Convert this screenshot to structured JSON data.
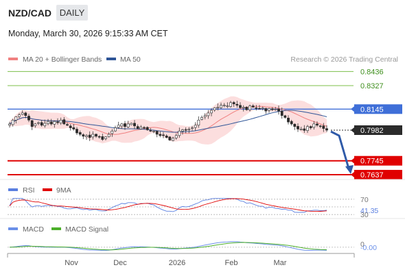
{
  "header": {
    "pair": "NZD/CAD",
    "timeframe": "DAILY",
    "datetime": "Monday, March 30, 2026 9:15:33 AM CET"
  },
  "legend_main": {
    "ma20_label": "MA 20 + Bollinger Bands",
    "ma50_label": "MA 50",
    "credit": "Research © 2026 Trading Central"
  },
  "legend_rsi": {
    "rsi_label": "RSI",
    "ma_label": "9MA"
  },
  "legend_macd": {
    "macd_label": "MACD",
    "signal_label": "MACD Signal"
  },
  "colors": {
    "resistance": "#7cbf4a",
    "support": "#e00000",
    "pivot": "#3f6fd8",
    "last": "#2b2b2b",
    "ma20": "#f08080",
    "ma50": "#2e5597",
    "bollinger_fill": "#fbd3d3",
    "macd": "#6a8fe8",
    "signal": "#4caf2a",
    "arrow": "#2f5aa8"
  },
  "chart_data": [
    {
      "type": "candlestick",
      "title": "NZD/CAD",
      "x_ticks": [
        "Nov",
        "Dec",
        "2026",
        "Feb",
        "Mar"
      ],
      "ylim": [
        0.76,
        0.847
      ],
      "levels": [
        {
          "kind": "resistance",
          "label": "0.8436",
          "value": 0.8436
        },
        {
          "kind": "resistance",
          "label": "0.8327",
          "value": 0.8327
        },
        {
          "kind": "pivot",
          "label": "0.8145",
          "value": 0.8145
        },
        {
          "kind": "last",
          "label": "0.7982",
          "value": 0.7982
        },
        {
          "kind": "support",
          "label": "0.7745",
          "value": 0.7745
        },
        {
          "kind": "support",
          "label": "0.7637",
          "value": 0.7637
        }
      ],
      "closes": [
        0.803,
        0.806,
        0.8085,
        0.81,
        0.8115,
        0.8095,
        0.806,
        0.801,
        0.803,
        0.804,
        0.802,
        0.8035,
        0.805,
        0.803,
        0.805,
        0.804,
        0.806,
        0.803,
        0.802,
        0.8,
        0.799,
        0.796,
        0.795,
        0.7935,
        0.794,
        0.7925,
        0.795,
        0.7935,
        0.793,
        0.791,
        0.793,
        0.795,
        0.7975,
        0.8,
        0.802,
        0.803,
        0.801,
        0.803,
        0.8035,
        0.8015,
        0.7995,
        0.8005,
        0.8,
        0.7985,
        0.7975,
        0.7975,
        0.795,
        0.794,
        0.794,
        0.7925,
        0.7905,
        0.792,
        0.794,
        0.7975,
        0.7985,
        0.7985,
        0.799,
        0.8,
        0.802,
        0.806,
        0.808,
        0.8095,
        0.8115,
        0.8135,
        0.8155,
        0.816,
        0.8175,
        0.8175,
        0.817,
        0.8195,
        0.8185,
        0.8175,
        0.8155,
        0.816,
        0.814,
        0.817,
        0.816,
        0.815,
        0.815,
        0.8155,
        0.813,
        0.815,
        0.814,
        0.8145,
        0.813,
        0.8095,
        0.808,
        0.8045,
        0.803,
        0.801,
        0.799,
        0.799,
        0.798,
        0.801,
        0.8,
        0.803,
        0.802,
        0.801,
        0.7995,
        0.7982
      ]
    },
    {
      "type": "line",
      "title": "RSI",
      "ylim": [
        25,
        75
      ],
      "tick_labels": [
        "70",
        "41.35",
        "30"
      ],
      "series": [
        {
          "name": "RSI",
          "last": 41.35
        }
      ]
    },
    {
      "type": "line",
      "title": "MACD",
      "ylim": [
        -0.006,
        0.014
      ],
      "tick_labels": [
        "0",
        "-0.00"
      ],
      "series": [
        {
          "name": "MACD",
          "last": -0.0005
        },
        {
          "name": "MACD Signal"
        }
      ]
    }
  ]
}
